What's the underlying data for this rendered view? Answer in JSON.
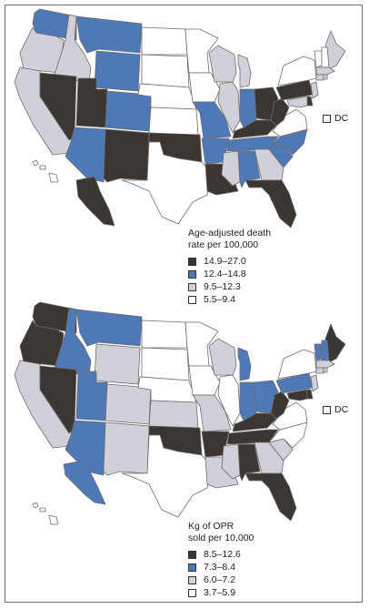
{
  "colors": {
    "dark": "#3b3631",
    "blue": "#4f78b7",
    "gray": "#cfd0d8",
    "white": "#ffffff",
    "border": "#6d6d6d"
  },
  "maps": [
    {
      "legend_title_1": "Age-adjusted death",
      "legend_title_2": "rate per 100,000",
      "dc_label": "DC",
      "dc_class": "white",
      "bins": [
        {
          "label": "14.9–27.0",
          "class": "dark"
        },
        {
          "label": "12.4–14.8",
          "class": "blue"
        },
        {
          "label": "9.5–12.3",
          "class": "gray"
        },
        {
          "label": "5.5–9.4",
          "class": "white"
        }
      ],
      "states": {
        "WA": "blue",
        "OR": "gray",
        "CA": "gray",
        "ID": "gray",
        "NV": "dark",
        "MT": "blue",
        "WY": "blue",
        "UT": "dark",
        "AZ": "blue",
        "CO": "blue",
        "NM": "dark",
        "ND": "white",
        "SD": "white",
        "NE": "white",
        "KS": "white",
        "OK": "dark",
        "TX": "white",
        "MN": "white",
        "IA": "white",
        "MO": "blue",
        "AR": "blue",
        "LA": "dark",
        "WI": "gray",
        "IL": "gray",
        "MI": "gray",
        "IN": "blue",
        "OH": "dark",
        "KY": "dark",
        "TN": "blue",
        "MS": "gray",
        "AL": "blue",
        "GA": "gray",
        "FL": "dark",
        "SC": "blue",
        "NC": "blue",
        "VA": "white",
        "WV": "dark",
        "PA": "dark",
        "NY": "white",
        "ME": "gray",
        "NH": "white",
        "VT": "white",
        "MA": "gray",
        "CT": "gray",
        "RI": "gray",
        "NJ": "gray",
        "DE": "dark",
        "MD": "gray",
        "AK": "dark",
        "HI": "white"
      }
    },
    {
      "legend_title_1": "Kg of OPR",
      "legend_title_2": "sold per 10,000",
      "dc_label": "DC",
      "dc_class": "white",
      "bins": [
        {
          "label": "8.5–12.6",
          "class": "dark"
        },
        {
          "label": "7.3–8.4",
          "class": "blue"
        },
        {
          "label": "6.0–7.2",
          "class": "gray"
        },
        {
          "label": "3.7–5.9",
          "class": "white"
        }
      ],
      "states": {
        "WA": "dark",
        "OR": "dark",
        "CA": "gray",
        "ID": "blue",
        "NV": "dark",
        "MT": "blue",
        "WY": "gray",
        "UT": "blue",
        "AZ": "blue",
        "CO": "gray",
        "NM": "gray",
        "ND": "white",
        "SD": "white",
        "NE": "white",
        "KS": "gray",
        "OK": "dark",
        "TX": "white",
        "MN": "white",
        "IA": "white",
        "MO": "gray",
        "AR": "dark",
        "LA": "gray",
        "WI": "gray",
        "IL": "white",
        "MI": "blue",
        "IN": "blue",
        "OH": "blue",
        "KY": "dark",
        "TN": "dark",
        "MS": "gray",
        "AL": "dark",
        "GA": "gray",
        "FL": "dark",
        "SC": "gray",
        "NC": "white",
        "VA": "white",
        "WV": "dark",
        "PA": "blue",
        "NY": "white",
        "ME": "dark",
        "NH": "blue",
        "VT": "blue",
        "MA": "gray",
        "CT": "gray",
        "RI": "gray",
        "NJ": "gray",
        "DE": "dark",
        "MD": "dark",
        "AK": "blue",
        "HI": "white"
      }
    }
  ]
}
